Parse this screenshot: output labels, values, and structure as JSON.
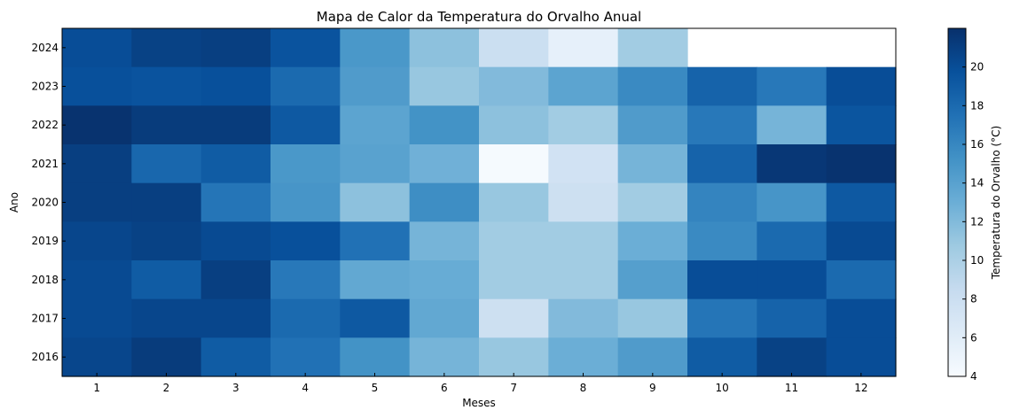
{
  "chart_data": {
    "type": "heatmap",
    "title": "Mapa de Calor da Temperatura do Orvalho Anual",
    "xlabel": "Meses",
    "ylabel": "Ano",
    "colorbar_label": "Temperatura do Orvalho (°C)",
    "x_categories": [
      "1",
      "2",
      "3",
      "4",
      "5",
      "6",
      "7",
      "8",
      "9",
      "10",
      "11",
      "12"
    ],
    "y_categories": [
      "2024",
      "2023",
      "2022",
      "2021",
      "2020",
      "2019",
      "2018",
      "2017",
      "2016"
    ],
    "values": [
      [
        20.0,
        20.8,
        21.0,
        19.6,
        14.8,
        11.5,
        8.0,
        5.5,
        10.5,
        null,
        null,
        null
      ],
      [
        19.8,
        19.6,
        19.8,
        18.0,
        14.5,
        11.0,
        12.0,
        13.8,
        15.8,
        18.5,
        17.0,
        20.0
      ],
      [
        21.8,
        21.2,
        21.2,
        19.2,
        13.8,
        15.2,
        11.5,
        10.5,
        14.5,
        17.0,
        12.5,
        19.5
      ],
      [
        21.0,
        18.2,
        19.0,
        14.8,
        14.0,
        12.8,
        4.2,
        7.5,
        12.5,
        18.5,
        21.5,
        21.8
      ],
      [
        21.0,
        21.0,
        17.2,
        15.0,
        11.5,
        15.5,
        11.0,
        7.8,
        10.5,
        16.2,
        15.0,
        19.2
      ],
      [
        20.5,
        20.8,
        20.2,
        19.8,
        17.5,
        12.5,
        10.5,
        10.5,
        13.0,
        15.8,
        18.0,
        20.2
      ],
      [
        20.2,
        19.0,
        21.0,
        17.0,
        13.5,
        13.2,
        10.5,
        10.5,
        14.2,
        20.0,
        20.0,
        18.0
      ],
      [
        20.2,
        20.5,
        20.5,
        18.0,
        19.2,
        13.5,
        7.8,
        12.0,
        11.0,
        17.2,
        18.5,
        20.0
      ],
      [
        20.5,
        21.2,
        19.0,
        17.5,
        15.2,
        12.5,
        11.0,
        13.0,
        14.5,
        19.0,
        20.8,
        20.0
      ]
    ],
    "colorbar": {
      "vmin": 4,
      "vmax": 22,
      "ticks": [
        "4",
        "6",
        "8",
        "10",
        "12",
        "14",
        "16",
        "18",
        "20"
      ],
      "colormap": "Blues"
    },
    "grid": false
  }
}
